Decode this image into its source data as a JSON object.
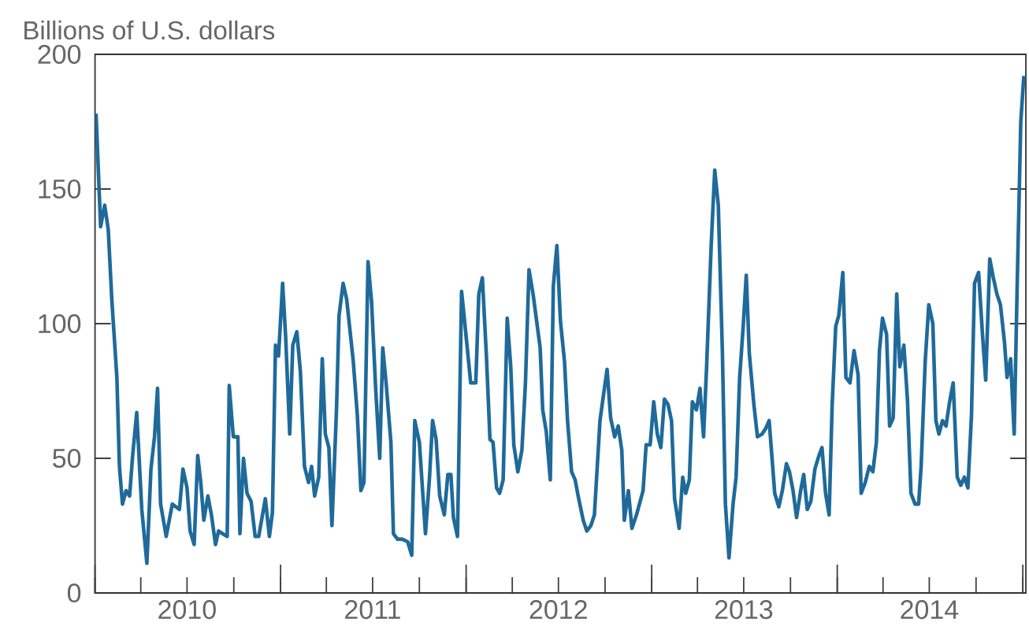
{
  "chart_data": {
    "type": "line",
    "ylabel": "Billions of U.S. dollars",
    "xlim": [
      "2010-01-01",
      "2015-01-07"
    ],
    "ylim": [
      0,
      200
    ],
    "yticks": [
      0,
      50,
      100,
      150,
      200
    ],
    "xticks": [
      {
        "value": "2010-01-01",
        "label": null
      },
      {
        "value": "2010-04-01",
        "label": null
      },
      {
        "value": "2010-07-01",
        "label": "2010"
      },
      {
        "value": "2010-10-01",
        "label": null
      },
      {
        "value": "2011-01-01",
        "label": null
      },
      {
        "value": "2011-04-01",
        "label": null
      },
      {
        "value": "2011-07-01",
        "label": "2011"
      },
      {
        "value": "2011-10-01",
        "label": null
      },
      {
        "value": "2012-01-01",
        "label": null
      },
      {
        "value": "2012-04-01",
        "label": null
      },
      {
        "value": "2012-07-01",
        "label": "2012"
      },
      {
        "value": "2012-10-01",
        "label": null
      },
      {
        "value": "2013-01-01",
        "label": null
      },
      {
        "value": "2013-04-01",
        "label": null
      },
      {
        "value": "2013-07-01",
        "label": "2013"
      },
      {
        "value": "2013-10-01",
        "label": null
      },
      {
        "value": "2014-01-01",
        "label": null
      },
      {
        "value": "2014-04-01",
        "label": null
      },
      {
        "value": "2014-07-01",
        "label": "2014"
      },
      {
        "value": "2014-10-01",
        "label": null
      },
      {
        "value": "2015-01-01",
        "label": null
      }
    ],
    "series": [
      {
        "color": "#1f6a9a",
        "x": [
          "2010-01-03",
          "2010-01-12",
          "2010-01-20",
          "2010-01-27",
          "2010-02-03",
          "2010-02-13",
          "2010-02-18",
          "2010-02-24",
          "2010-03-03",
          "2010-03-10",
          "2010-03-16",
          "2010-03-24",
          "2010-04-03",
          "2010-04-13",
          "2010-04-21",
          "2010-04-28",
          "2010-05-04",
          "2010-05-10",
          "2010-05-21",
          "2010-06-02",
          "2010-06-16",
          "2010-06-23",
          "2010-07-01",
          "2010-07-07",
          "2010-07-15",
          "2010-07-22",
          "2010-07-28",
          "2010-08-03",
          "2010-08-11",
          "2010-08-18",
          "2010-08-26",
          "2010-09-01",
          "2010-09-09",
          "2010-09-18",
          "2010-09-22",
          "2010-09-30",
          "2010-10-09",
          "2010-10-13",
          "2010-10-20",
          "2010-10-27",
          "2010-11-04",
          "2010-11-12",
          "2010-11-19",
          "2010-12-02",
          "2010-12-10",
          "2010-12-16",
          "2010-12-22",
          "2010-12-28",
          "2011-01-05",
          "2011-01-11",
          "2011-01-19",
          "2011-01-25",
          "2011-02-02",
          "2011-02-09",
          "2011-02-17",
          "2011-02-25",
          "2011-03-03",
          "2011-03-09",
          "2011-03-17",
          "2011-03-24",
          "2011-03-30",
          "2011-04-06",
          "2011-04-12",
          "2011-04-21",
          "2011-04-26",
          "2011-05-04",
          "2011-05-11",
          "2011-05-24",
          "2011-06-01",
          "2011-06-08",
          "2011-06-14",
          "2011-06-22",
          "2011-06-29",
          "2011-07-07",
          "2011-07-15",
          "2011-07-21",
          "2011-07-28",
          "2011-08-06",
          "2011-08-11",
          "2011-08-19",
          "2011-08-28",
          "2011-09-08",
          "2011-09-16",
          "2011-09-22",
          "2011-10-01",
          "2011-10-13",
          "2011-10-21",
          "2011-10-27",
          "2011-11-03",
          "2011-11-10",
          "2011-11-19",
          "2011-11-26",
          "2011-12-02",
          "2011-12-07",
          "2011-12-15",
          "2011-12-23",
          "2011-12-30",
          "2012-01-10",
          "2012-01-20",
          "2012-01-26",
          "2012-02-02",
          "2012-02-10",
          "2012-02-17",
          "2012-02-23",
          "2012-03-01",
          "2012-03-07",
          "2012-03-14",
          "2012-03-22",
          "2012-03-29",
          "2012-04-04",
          "2012-04-12",
          "2012-04-20",
          "2012-04-27",
          "2012-05-04",
          "2012-05-12",
          "2012-05-26",
          "2012-05-31",
          "2012-06-07",
          "2012-06-15",
          "2012-06-21",
          "2012-06-28",
          "2012-07-05",
          "2012-07-13",
          "2012-07-19",
          "2012-07-27",
          "2012-08-03",
          "2012-08-10",
          "2012-08-19",
          "2012-08-26",
          "2012-09-03",
          "2012-09-10",
          "2012-09-21",
          "2012-09-29",
          "2012-10-05",
          "2012-10-12",
          "2012-10-20",
          "2012-10-27",
          "2012-11-03",
          "2012-11-08",
          "2012-11-16",
          "2012-11-23",
          "2012-12-02",
          "2012-12-15",
          "2012-12-21",
          "2012-12-29",
          "2013-01-05",
          "2013-01-12",
          "2013-01-19",
          "2013-01-26",
          "2013-02-02",
          "2013-02-09",
          "2013-02-15",
          "2013-02-24",
          "2013-03-03",
          "2013-03-09",
          "2013-03-16",
          "2013-03-22",
          "2013-03-30",
          "2013-04-06",
          "2013-04-13",
          "2013-04-19",
          "2013-04-28",
          "2013-05-05",
          "2013-05-12",
          "2013-05-20",
          "2013-05-26",
          "2013-06-02",
          "2013-06-10",
          "2013-06-16",
          "2013-06-23",
          "2013-06-30",
          "2013-07-06",
          "2013-07-12",
          "2013-07-21",
          "2013-07-28",
          "2013-08-06",
          "2013-08-13",
          "2013-08-20",
          "2013-08-31",
          "2013-09-08",
          "2013-09-15",
          "2013-09-23",
          "2013-09-29",
          "2013-10-06",
          "2013-10-13",
          "2013-10-21",
          "2013-10-27",
          "2013-11-03",
          "2013-11-10",
          "2013-11-18",
          "2013-11-26",
          "2013-12-02",
          "2013-12-09",
          "2013-12-16",
          "2013-12-22",
          "2013-12-29",
          "2014-01-04",
          "2014-01-12",
          "2014-01-18",
          "2014-01-26",
          "2014-02-03",
          "2014-02-11",
          "2014-02-17",
          "2014-02-25",
          "2014-03-05",
          "2014-03-12",
          "2014-03-19",
          "2014-03-25",
          "2014-03-31",
          "2014-04-08",
          "2014-04-14",
          "2014-04-21",
          "2014-04-28",
          "2014-05-04",
          "2014-05-12",
          "2014-05-19",
          "2014-05-26",
          "2014-06-03",
          "2014-06-10",
          "2014-06-15",
          "2014-06-23",
          "2014-06-30",
          "2014-07-08",
          "2014-07-14",
          "2014-07-20",
          "2014-07-27",
          "2014-08-03",
          "2014-08-10",
          "2014-08-17",
          "2014-08-25",
          "2014-09-01",
          "2014-09-08",
          "2014-09-15",
          "2014-09-22",
          "2014-09-28",
          "2014-10-06",
          "2014-10-14",
          "2014-10-20",
          "2014-10-28",
          "2014-11-04",
          "2014-11-11",
          "2014-11-18",
          "2014-11-26",
          "2014-12-01",
          "2014-12-08",
          "2014-12-15",
          "2014-12-21",
          "2014-12-28",
          "2015-01-03"
        ],
        "values": [
          178,
          136,
          144,
          135,
          109,
          80,
          47,
          33,
          38,
          36,
          51,
          67,
          31,
          11,
          46,
          58,
          76,
          33,
          21,
          33,
          31,
          46,
          39,
          23,
          18,
          51,
          41,
          27,
          36,
          29,
          18,
          23,
          22,
          21,
          77,
          58,
          58,
          22,
          50,
          37,
          34,
          21,
          21,
          35,
          21,
          30,
          92,
          88,
          115,
          95,
          59,
          92,
          97,
          82,
          47,
          41,
          47,
          36,
          43,
          87,
          59,
          54,
          25,
          68,
          103,
          115,
          109,
          86,
          66,
          38,
          41,
          123,
          108,
          76,
          50,
          91,
          77,
          56,
          22,
          20,
          20,
          19,
          14,
          64,
          56,
          22,
          43,
          64,
          57,
          36,
          29,
          44,
          44,
          28,
          21,
          112,
          99,
          78,
          78,
          111,
          117,
          88,
          57,
          56,
          39,
          37,
          42,
          102,
          84,
          55,
          45,
          53,
          78,
          120,
          111,
          91,
          68,
          60,
          42,
          114,
          129,
          101,
          86,
          64,
          45,
          42,
          35,
          27,
          23,
          25,
          29,
          64,
          75,
          83,
          65,
          58,
          62,
          53,
          27,
          38,
          24,
          29,
          38,
          55,
          55,
          71,
          59,
          54,
          72,
          70,
          64,
          35,
          24,
          43,
          37,
          42,
          71,
          68,
          76,
          58,
          84,
          129,
          157,
          144,
          90,
          33,
          13,
          33,
          43,
          80,
          99,
          118,
          89,
          70,
          58,
          59,
          61,
          64,
          37,
          32,
          38,
          48,
          45,
          38,
          28,
          38,
          44,
          31,
          34,
          46,
          51,
          54,
          37,
          29,
          70,
          99,
          103,
          119,
          80,
          78,
          90,
          81,
          37,
          41,
          47,
          45,
          56,
          90,
          102,
          96,
          62,
          65,
          111,
          84,
          92,
          72,
          37,
          33,
          33,
          47,
          86,
          107,
          100,
          64,
          59,
          64,
          62,
          71,
          78,
          43,
          40,
          43,
          39,
          66,
          115,
          119,
          95,
          79,
          124,
          117,
          111,
          107,
          93,
          80,
          87,
          59,
          115,
          175,
          192
        ]
      }
    ]
  }
}
